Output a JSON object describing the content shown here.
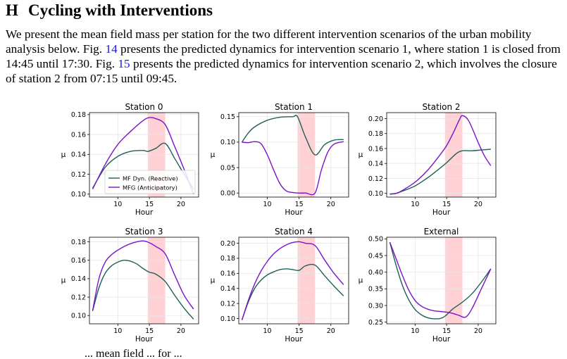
{
  "section": {
    "number": "H",
    "title": "Cycling with Interventions"
  },
  "paragraph": {
    "part1": "We present the mean field mass per station for the two different intervention scenarios of the urban mobility analysis below. Fig. ",
    "ref1": "14",
    "part2": " presents the predicted dynamics for intervention scenario 1, where station 1 is closed from 14:45 until 17:30. Fig. ",
    "ref2": "15",
    "part3": " presents the predicted dynamics for intervention scenario 2, which involves the closure of station 2 from 07:15 until 09:45."
  },
  "caption_fragment": "... mean field ... for ...",
  "colors": {
    "reactive": "#1f5f5b",
    "anticipatory": "#7b12c9",
    "closure_band": "#ffd0d4",
    "link": "#1a1ae6"
  },
  "chart_data": [
    {
      "type": "line",
      "title": "Station 0",
      "xlabel": "Hour",
      "ylabel": "μ",
      "xlim": [
        5.5,
        22.8
      ],
      "ylim": [
        0.097,
        0.182
      ],
      "xticks": [
        10,
        15,
        20
      ],
      "yticks": [
        0.1,
        0.12,
        0.14,
        0.16,
        0.18
      ],
      "ytick_labels": [
        "0.10",
        "0.12",
        "0.14",
        "0.16",
        "0.18"
      ],
      "shaded_interval": [
        14.75,
        17.5
      ],
      "grid": true,
      "legend": {
        "placement": "lower-center",
        "entries": [
          "MF Dyn. (Reactive)",
          "MFG (Anticipatory)"
        ]
      },
      "series": [
        {
          "name": "MF Dyn. (Reactive)",
          "x": [
            6,
            8,
            10,
            12,
            14,
            14.75,
            16,
            17.5,
            19,
            20.5,
            22
          ],
          "y": [
            0.106,
            0.127,
            0.138,
            0.143,
            0.144,
            0.143,
            0.146,
            0.151,
            0.136,
            0.12,
            0.105
          ]
        },
        {
          "name": "MFG (Anticipatory)",
          "x": [
            6,
            8,
            10,
            12,
            14,
            15,
            16,
            17.5,
            19,
            20.5,
            22
          ],
          "y": [
            0.105,
            0.13,
            0.15,
            0.163,
            0.174,
            0.177,
            0.176,
            0.17,
            0.148,
            0.125,
            0.1
          ]
        }
      ]
    },
    {
      "type": "line",
      "title": "Station 1",
      "xlabel": "Hour",
      "ylabel": "μ",
      "xlim": [
        5.5,
        22.8
      ],
      "ylim": [
        -0.008,
        0.158
      ],
      "xticks": [
        10,
        15,
        20
      ],
      "yticks": [
        0.0,
        0.05,
        0.1,
        0.15
      ],
      "ytick_labels": [
        "0.00",
        "0.05",
        "0.10",
        "0.15"
      ],
      "shaded_interval": [
        14.75,
        17.5
      ],
      "grid": true,
      "series": [
        {
          "name": "MF Dyn. (Reactive)",
          "x": [
            6,
            7,
            8,
            10,
            12,
            14,
            14.75,
            16,
            17.5,
            19,
            20.5,
            22
          ],
          "y": [
            0.1,
            0.118,
            0.13,
            0.143,
            0.149,
            0.15,
            0.15,
            0.11,
            0.075,
            0.095,
            0.104,
            0.105
          ]
        },
        {
          "name": "MFG (Anticipatory)",
          "x": [
            6,
            7,
            8,
            9,
            10,
            11,
            12,
            13,
            14,
            14.75,
            16,
            17.5,
            18.5,
            19.5,
            20.5,
            22
          ],
          "y": [
            0.1,
            0.099,
            0.101,
            0.097,
            0.075,
            0.045,
            0.018,
            0.004,
            0.001,
            0.0,
            0.0,
            0.0,
            0.045,
            0.08,
            0.096,
            0.101
          ]
        }
      ]
    },
    {
      "type": "line",
      "title": "Station 2",
      "xlabel": "Hour",
      "ylabel": "μ",
      "xlim": [
        5.5,
        22.8
      ],
      "ylim": [
        0.095,
        0.208
      ],
      "xticks": [
        10,
        15,
        20
      ],
      "yticks": [
        0.1,
        0.12,
        0.14,
        0.16,
        0.18,
        0.2
      ],
      "ytick_labels": [
        "0.10",
        "0.12",
        "0.14",
        "0.16",
        "0.18",
        "0.20"
      ],
      "shaded_interval": [
        14.75,
        17.5
      ],
      "grid": true,
      "series": [
        {
          "name": "MF Dyn. (Reactive)",
          "x": [
            6,
            7,
            8,
            10,
            12,
            14,
            15,
            16.5,
            17.5,
            19,
            20.5,
            22
          ],
          "y": [
            0.099,
            0.1,
            0.103,
            0.11,
            0.121,
            0.134,
            0.141,
            0.153,
            0.157,
            0.157,
            0.158,
            0.159
          ]
        },
        {
          "name": "MFG (Anticipatory)",
          "x": [
            6,
            7,
            8,
            10,
            12,
            14,
            15,
            16,
            17,
            17.5,
            18.5,
            20,
            21,
            22
          ],
          "y": [
            0.099,
            0.1,
            0.104,
            0.115,
            0.131,
            0.152,
            0.164,
            0.18,
            0.198,
            0.204,
            0.197,
            0.168,
            0.15,
            0.137
          ]
        }
      ]
    },
    {
      "type": "line",
      "title": "Station 3",
      "xlabel": "Hour",
      "ylabel": "μ",
      "xlim": [
        5.5,
        22.8
      ],
      "ylim": [
        0.091,
        0.185
      ],
      "xticks": [
        10,
        15,
        20
      ],
      "yticks": [
        0.1,
        0.12,
        0.14,
        0.16,
        0.18
      ],
      "ytick_labels": [
        "0.10",
        "0.12",
        "0.14",
        "0.16",
        "0.18"
      ],
      "shaded_interval": [
        14.75,
        17.5
      ],
      "grid": true,
      "series": [
        {
          "name": "MF Dyn. (Reactive)",
          "x": [
            6,
            7,
            8,
            9,
            10,
            11,
            12,
            13,
            14,
            15,
            16,
            17.5,
            19,
            20.5,
            22
          ],
          "y": [
            0.105,
            0.13,
            0.146,
            0.154,
            0.158,
            0.16,
            0.159,
            0.156,
            0.151,
            0.147,
            0.145,
            0.137,
            0.122,
            0.108,
            0.096
          ]
        },
        {
          "name": "MFG (Anticipatory)",
          "x": [
            6,
            7,
            8,
            9,
            10,
            11,
            12,
            13,
            14,
            15,
            16,
            17.5,
            19,
            20.5,
            22
          ],
          "y": [
            0.105,
            0.14,
            0.158,
            0.166,
            0.171,
            0.175,
            0.178,
            0.18,
            0.181,
            0.179,
            0.175,
            0.167,
            0.144,
            0.122,
            0.107
          ]
        }
      ]
    },
    {
      "type": "line",
      "title": "Station 4",
      "xlabel": "Hour",
      "ylabel": "μ",
      "xlim": [
        5.5,
        22.8
      ],
      "ylim": [
        0.093,
        0.208
      ],
      "xticks": [
        10,
        15,
        20
      ],
      "yticks": [
        0.1,
        0.12,
        0.14,
        0.16,
        0.18,
        0.2
      ],
      "ytick_labels": [
        "0.10",
        "0.12",
        "0.14",
        "0.16",
        "0.18",
        "0.20"
      ],
      "shaded_interval": [
        14.75,
        17.5
      ],
      "grid": true,
      "series": [
        {
          "name": "MF Dyn. (Reactive)",
          "x": [
            6,
            7,
            8,
            9,
            10,
            11,
            12,
            13,
            14,
            15,
            16,
            17.5,
            19,
            20.5,
            22
          ],
          "y": [
            0.098,
            0.122,
            0.14,
            0.151,
            0.158,
            0.162,
            0.165,
            0.166,
            0.165,
            0.164,
            0.17,
            0.171,
            0.157,
            0.143,
            0.13
          ]
        },
        {
          "name": "MFG (Anticipatory)",
          "x": [
            6,
            7,
            8,
            9,
            10,
            11,
            12,
            13,
            14,
            15,
            16,
            17.5,
            19,
            20.5,
            22
          ],
          "y": [
            0.098,
            0.124,
            0.146,
            0.163,
            0.176,
            0.186,
            0.193,
            0.198,
            0.201,
            0.202,
            0.2,
            0.197,
            0.178,
            0.16,
            0.145
          ]
        }
      ]
    },
    {
      "type": "line",
      "title": "External",
      "xlabel": "Hour",
      "ylabel": "μ",
      "xlim": [
        5.5,
        22.8
      ],
      "ylim": [
        0.245,
        0.505
      ],
      "xticks": [
        10,
        15,
        20
      ],
      "yticks": [
        0.25,
        0.3,
        0.35,
        0.4,
        0.45,
        0.5
      ],
      "ytick_labels": [
        "0.25",
        "0.30",
        "0.35",
        "0.40",
        "0.45",
        "0.50"
      ],
      "shaded_interval": [
        14.75,
        17.5
      ],
      "grid": true,
      "series": [
        {
          "name": "MF Dyn. (Reactive)",
          "x": [
            6,
            7,
            8,
            9,
            10,
            11,
            12,
            13,
            14,
            14.75,
            16,
            17.5,
            19,
            20.5,
            22
          ],
          "y": [
            0.49,
            0.42,
            0.36,
            0.317,
            0.288,
            0.272,
            0.263,
            0.26,
            0.261,
            0.268,
            0.29,
            0.31,
            0.335,
            0.37,
            0.41
          ]
        },
        {
          "name": "MFG (Anticipatory)",
          "x": [
            6,
            7,
            8,
            9,
            10,
            11,
            12,
            13,
            14,
            15,
            16,
            17,
            18,
            19,
            20.5,
            22
          ],
          "y": [
            0.49,
            0.44,
            0.39,
            0.346,
            0.315,
            0.298,
            0.289,
            0.284,
            0.282,
            0.28,
            0.276,
            0.27,
            0.265,
            0.29,
            0.35,
            0.41
          ]
        }
      ]
    }
  ]
}
